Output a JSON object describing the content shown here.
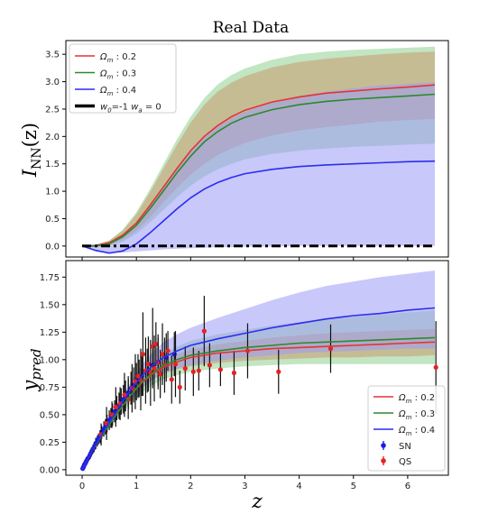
{
  "chart_data": [
    {
      "type": "line",
      "title": "Real Data",
      "xlabel": "",
      "ylabel": "I_NN(z)",
      "ylabel_main": "I",
      "ylabel_sub": "NN",
      "ylabel_tail": "(z)",
      "xlim": [
        -0.3,
        6.75
      ],
      "ylim": [
        -0.2,
        3.75
      ],
      "xticks": [
        0,
        1,
        2,
        3,
        4,
        5,
        6
      ],
      "yticks": [
        0.0,
        0.5,
        1.0,
        1.5,
        2.0,
        2.5,
        3.0,
        3.5
      ],
      "ytick_labels": [
        "0.0",
        "0.5",
        "1.0",
        "1.5",
        "2.0",
        "2.5",
        "3.0",
        "3.5"
      ],
      "legend_position": "upper-left",
      "grid": false,
      "x": [
        0,
        0.25,
        0.5,
        0.75,
        1.0,
        1.25,
        1.5,
        1.75,
        2.0,
        2.25,
        2.5,
        2.75,
        3.0,
        3.5,
        4.0,
        4.5,
        5.0,
        5.5,
        6.0,
        6.5
      ],
      "series": [
        {
          "name": "Ω_m : 0.2",
          "label_main": "Ω",
          "label_sub": "m",
          "label_tail": " : 0.2",
          "color": "#e53333",
          "band_color": "#c89a70",
          "values": [
            0.0,
            0.01,
            0.06,
            0.2,
            0.42,
            0.74,
            1.08,
            1.42,
            1.74,
            2.0,
            2.2,
            2.36,
            2.48,
            2.63,
            2.72,
            2.79,
            2.83,
            2.87,
            2.9,
            2.94
          ],
          "upper": [
            0.0,
            0.02,
            0.1,
            0.28,
            0.58,
            0.98,
            1.42,
            1.85,
            2.25,
            2.58,
            2.82,
            2.98,
            3.1,
            3.26,
            3.36,
            3.42,
            3.46,
            3.5,
            3.53,
            3.55
          ],
          "lower": [
            0.0,
            -0.01,
            0.02,
            0.12,
            0.28,
            0.52,
            0.8,
            1.06,
            1.3,
            1.5,
            1.66,
            1.78,
            1.88,
            2.02,
            2.11,
            2.17,
            2.22,
            2.27,
            2.3,
            2.32
          ]
        },
        {
          "name": "Ω_m : 0.3",
          "label_main": "Ω",
          "label_sub": "m",
          "label_tail": " : 0.3",
          "color": "#2a8a2a",
          "band_color": "#8fcf8f",
          "values": [
            0.0,
            0.0,
            0.04,
            0.17,
            0.38,
            0.68,
            1.01,
            1.34,
            1.64,
            1.9,
            2.09,
            2.24,
            2.35,
            2.49,
            2.58,
            2.64,
            2.68,
            2.71,
            2.74,
            2.77
          ],
          "upper": [
            0.0,
            0.02,
            0.1,
            0.3,
            0.62,
            1.04,
            1.5,
            1.95,
            2.36,
            2.7,
            2.95,
            3.12,
            3.24,
            3.4,
            3.5,
            3.55,
            3.58,
            3.6,
            3.62,
            3.64
          ],
          "lower": [
            0.0,
            -0.02,
            0.0,
            0.08,
            0.22,
            0.43,
            0.66,
            0.89,
            1.1,
            1.27,
            1.4,
            1.5,
            1.58,
            1.68,
            1.74,
            1.78,
            1.81,
            1.83,
            1.85,
            1.87
          ]
        },
        {
          "name": "Ω_m : 0.4",
          "label_main": "Ω",
          "label_sub": "m",
          "label_tail": " : 0.4",
          "color": "#2c2cf0",
          "band_color": "#9a9af8",
          "values": [
            0.0,
            -0.08,
            -0.13,
            -0.09,
            0.04,
            0.24,
            0.46,
            0.68,
            0.88,
            1.04,
            1.16,
            1.25,
            1.32,
            1.4,
            1.45,
            1.48,
            1.5,
            1.52,
            1.54,
            1.55
          ],
          "upper": [
            0.0,
            0.0,
            0.04,
            0.18,
            0.42,
            0.74,
            1.08,
            1.42,
            1.72,
            1.98,
            2.18,
            2.33,
            2.45,
            2.62,
            2.74,
            2.82,
            2.88,
            2.93,
            2.96,
            2.99
          ],
          "lower": [
            0.0,
            -0.1,
            -0.12,
            -0.12,
            -0.1,
            -0.08,
            -0.06,
            -0.05,
            -0.04,
            -0.03,
            -0.02,
            -0.02,
            -0.01,
            -0.01,
            0.0,
            0.0,
            0.0,
            0.0,
            0.0,
            0.0
          ]
        },
        {
          "name": "w_0=-1 w_a = 0",
          "label_main": "w",
          "label_sub": "0",
          "label_tail": "=-1 ",
          "label_main2": "w",
          "label_sub2": "a",
          "label_tail2": " = 0",
          "color": "#000000",
          "style": "dashdot",
          "values": [
            0.0,
            0.0,
            0.0,
            0.0,
            0.0,
            0.0,
            0.0,
            0.0,
            0.0,
            0.0,
            0.0,
            0.0,
            0.0,
            0.0,
            0.0,
            0.0,
            0.0,
            0.0,
            0.0,
            0.0
          ]
        }
      ]
    },
    {
      "type": "line",
      "title": "",
      "xlabel": "z",
      "ylabel": "y_pred",
      "ylabel_main": "y",
      "ylabel_sub": "pred",
      "xlim": [
        -0.3,
        6.75
      ],
      "ylim": [
        -0.05,
        1.9
      ],
      "xticks": [
        0,
        1,
        2,
        3,
        4,
        5,
        6
      ],
      "xtick_labels": [
        "0",
        "1",
        "2",
        "3",
        "4",
        "5",
        "6"
      ],
      "yticks": [
        0.0,
        0.25,
        0.5,
        0.75,
        1.0,
        1.25,
        1.5,
        1.75
      ],
      "ytick_labels": [
        "0.00",
        "0.25",
        "0.50",
        "0.75",
        "1.00",
        "1.25",
        "1.50",
        "1.75"
      ],
      "legend_position": "lower-right",
      "grid": false,
      "x": [
        0,
        0.1,
        0.2,
        0.35,
        0.5,
        0.7,
        0.9,
        1.1,
        1.3,
        1.5,
        1.75,
        2.0,
        2.5,
        3.0,
        3.5,
        4.0,
        4.5,
        5.0,
        5.5,
        6.0,
        6.5
      ],
      "series": [
        {
          "name": "Ω_m : 0.2",
          "label_main": "Ω",
          "label_sub": "m",
          "label_tail": " : 0.2",
          "color": "#e53333",
          "band_color": "#c89a70",
          "values": [
            0.0,
            0.09,
            0.18,
            0.3,
            0.41,
            0.55,
            0.68,
            0.79,
            0.87,
            0.93,
            0.98,
            1.02,
            1.06,
            1.08,
            1.1,
            1.11,
            1.12,
            1.13,
            1.14,
            1.15,
            1.16
          ],
          "upper": [
            0.0,
            0.09,
            0.18,
            0.31,
            0.43,
            0.58,
            0.72,
            0.84,
            0.93,
            1.0,
            1.05,
            1.09,
            1.14,
            1.17,
            1.2,
            1.22,
            1.24,
            1.25,
            1.26,
            1.27,
            1.28
          ],
          "lower": [
            0.0,
            0.09,
            0.17,
            0.29,
            0.39,
            0.52,
            0.64,
            0.74,
            0.82,
            0.87,
            0.91,
            0.94,
            0.97,
            0.99,
            1.0,
            1.01,
            1.02,
            1.02,
            1.03,
            1.03,
            1.04
          ]
        },
        {
          "name": "Ω_m : 0.3",
          "label_main": "Ω",
          "label_sub": "m",
          "label_tail": " : 0.3",
          "color": "#2a8a2a",
          "band_color": "#8fcf8f",
          "values": [
            0.0,
            0.09,
            0.18,
            0.3,
            0.41,
            0.55,
            0.68,
            0.8,
            0.88,
            0.95,
            1.0,
            1.04,
            1.08,
            1.11,
            1.13,
            1.15,
            1.16,
            1.17,
            1.18,
            1.19,
            1.2
          ],
          "upper": [
            0.0,
            0.09,
            0.18,
            0.31,
            0.43,
            0.59,
            0.74,
            0.87,
            0.97,
            1.05,
            1.12,
            1.17,
            1.23,
            1.27,
            1.31,
            1.34,
            1.37,
            1.39,
            1.41,
            1.43,
            1.45
          ],
          "lower": [
            0.0,
            0.09,
            0.17,
            0.28,
            0.38,
            0.5,
            0.61,
            0.7,
            0.77,
            0.82,
            0.86,
            0.89,
            0.92,
            0.94,
            0.95,
            0.96,
            0.96,
            0.96,
            0.96,
            0.96,
            0.96
          ]
        },
        {
          "name": "Ω_m : 0.4",
          "label_main": "Ω",
          "label_sub": "m",
          "label_tail": " : 0.4",
          "color": "#2c2cf0",
          "band_color": "#9a9af8",
          "values": [
            0.0,
            0.09,
            0.18,
            0.31,
            0.43,
            0.58,
            0.73,
            0.85,
            0.95,
            1.02,
            1.08,
            1.13,
            1.19,
            1.24,
            1.29,
            1.33,
            1.37,
            1.4,
            1.42,
            1.45,
            1.47
          ],
          "upper": [
            0.0,
            0.09,
            0.19,
            0.33,
            0.46,
            0.63,
            0.8,
            0.95,
            1.07,
            1.16,
            1.23,
            1.29,
            1.38,
            1.46,
            1.54,
            1.61,
            1.67,
            1.71,
            1.75,
            1.78,
            1.81
          ],
          "lower": [
            0.0,
            0.09,
            0.17,
            0.29,
            0.39,
            0.52,
            0.64,
            0.74,
            0.82,
            0.88,
            0.92,
            0.95,
            0.99,
            1.02,
            1.04,
            1.06,
            1.07,
            1.08,
            1.09,
            1.1,
            1.1
          ]
        }
      ],
      "sn_data": {
        "name": "SN",
        "color": "#1a1ae6",
        "x": [
          0.01,
          0.02,
          0.03,
          0.04,
          0.05,
          0.06,
          0.07,
          0.08,
          0.1,
          0.12,
          0.14,
          0.16,
          0.18,
          0.2,
          0.22,
          0.25,
          0.28,
          0.3,
          0.33,
          0.36,
          0.4,
          0.43,
          0.46,
          0.5,
          0.53,
          0.56,
          0.6,
          0.64,
          0.68,
          0.72,
          0.76,
          0.8,
          0.85,
          0.9,
          0.95,
          1.0,
          1.05,
          1.1,
          1.2,
          1.3,
          1.4,
          1.55,
          1.7
        ],
        "y": [
          0.01,
          0.02,
          0.03,
          0.045,
          0.05,
          0.06,
          0.07,
          0.08,
          0.1,
          0.11,
          0.13,
          0.15,
          0.17,
          0.19,
          0.2,
          0.24,
          0.26,
          0.28,
          0.3,
          0.34,
          0.37,
          0.39,
          0.42,
          0.45,
          0.47,
          0.5,
          0.53,
          0.56,
          0.58,
          0.62,
          0.64,
          0.67,
          0.7,
          0.74,
          0.77,
          0.8,
          0.83,
          0.85,
          0.9,
          0.95,
          0.98,
          1.02,
          1.05
        ],
        "err": [
          0.01,
          0.01,
          0.01,
          0.015,
          0.02,
          0.02,
          0.02,
          0.02,
          0.025,
          0.03,
          0.03,
          0.03,
          0.03,
          0.04,
          0.04,
          0.05,
          0.05,
          0.05,
          0.06,
          0.06,
          0.07,
          0.07,
          0.08,
          0.09,
          0.09,
          0.1,
          0.1,
          0.11,
          0.12,
          0.12,
          0.13,
          0.14,
          0.15,
          0.15,
          0.16,
          0.17,
          0.17,
          0.18,
          0.2,
          0.21,
          0.22,
          0.22,
          0.2
        ]
      },
      "qs_data": {
        "name": "QS",
        "color": "#e52222",
        "x": [
          0.35,
          0.45,
          0.55,
          0.62,
          0.7,
          0.78,
          0.85,
          0.92,
          0.98,
          1.03,
          1.08,
          1.12,
          1.17,
          1.22,
          1.26,
          1.3,
          1.33,
          1.36,
          1.4,
          1.44,
          1.48,
          1.52,
          1.58,
          1.65,
          1.72,
          1.8,
          1.9,
          2.05,
          2.15,
          2.25,
          2.35,
          2.55,
          2.8,
          3.05,
          3.62,
          4.58,
          6.52
        ],
        "y": [
          0.32,
          0.42,
          0.5,
          0.57,
          0.6,
          0.68,
          0.64,
          0.74,
          0.8,
          0.85,
          0.82,
          1.05,
          0.9,
          0.96,
          0.88,
          1.12,
          0.92,
          1.14,
          0.98,
          0.87,
          1.05,
          0.95,
          1.08,
          0.82,
          0.96,
          0.75,
          0.92,
          0.89,
          0.9,
          1.26,
          0.95,
          0.91,
          0.88,
          1.08,
          0.89,
          1.1,
          0.93
        ],
        "err": [
          0.1,
          0.15,
          0.12,
          0.18,
          0.15,
          0.2,
          0.18,
          0.22,
          0.25,
          0.2,
          0.28,
          0.38,
          0.3,
          0.25,
          0.3,
          0.35,
          0.3,
          0.2,
          0.25,
          0.22,
          0.28,
          0.25,
          0.18,
          0.22,
          0.3,
          0.15,
          0.2,
          0.22,
          0.18,
          0.32,
          0.2,
          0.15,
          0.2,
          0.25,
          0.2,
          0.22,
          0.42
        ]
      }
    }
  ]
}
